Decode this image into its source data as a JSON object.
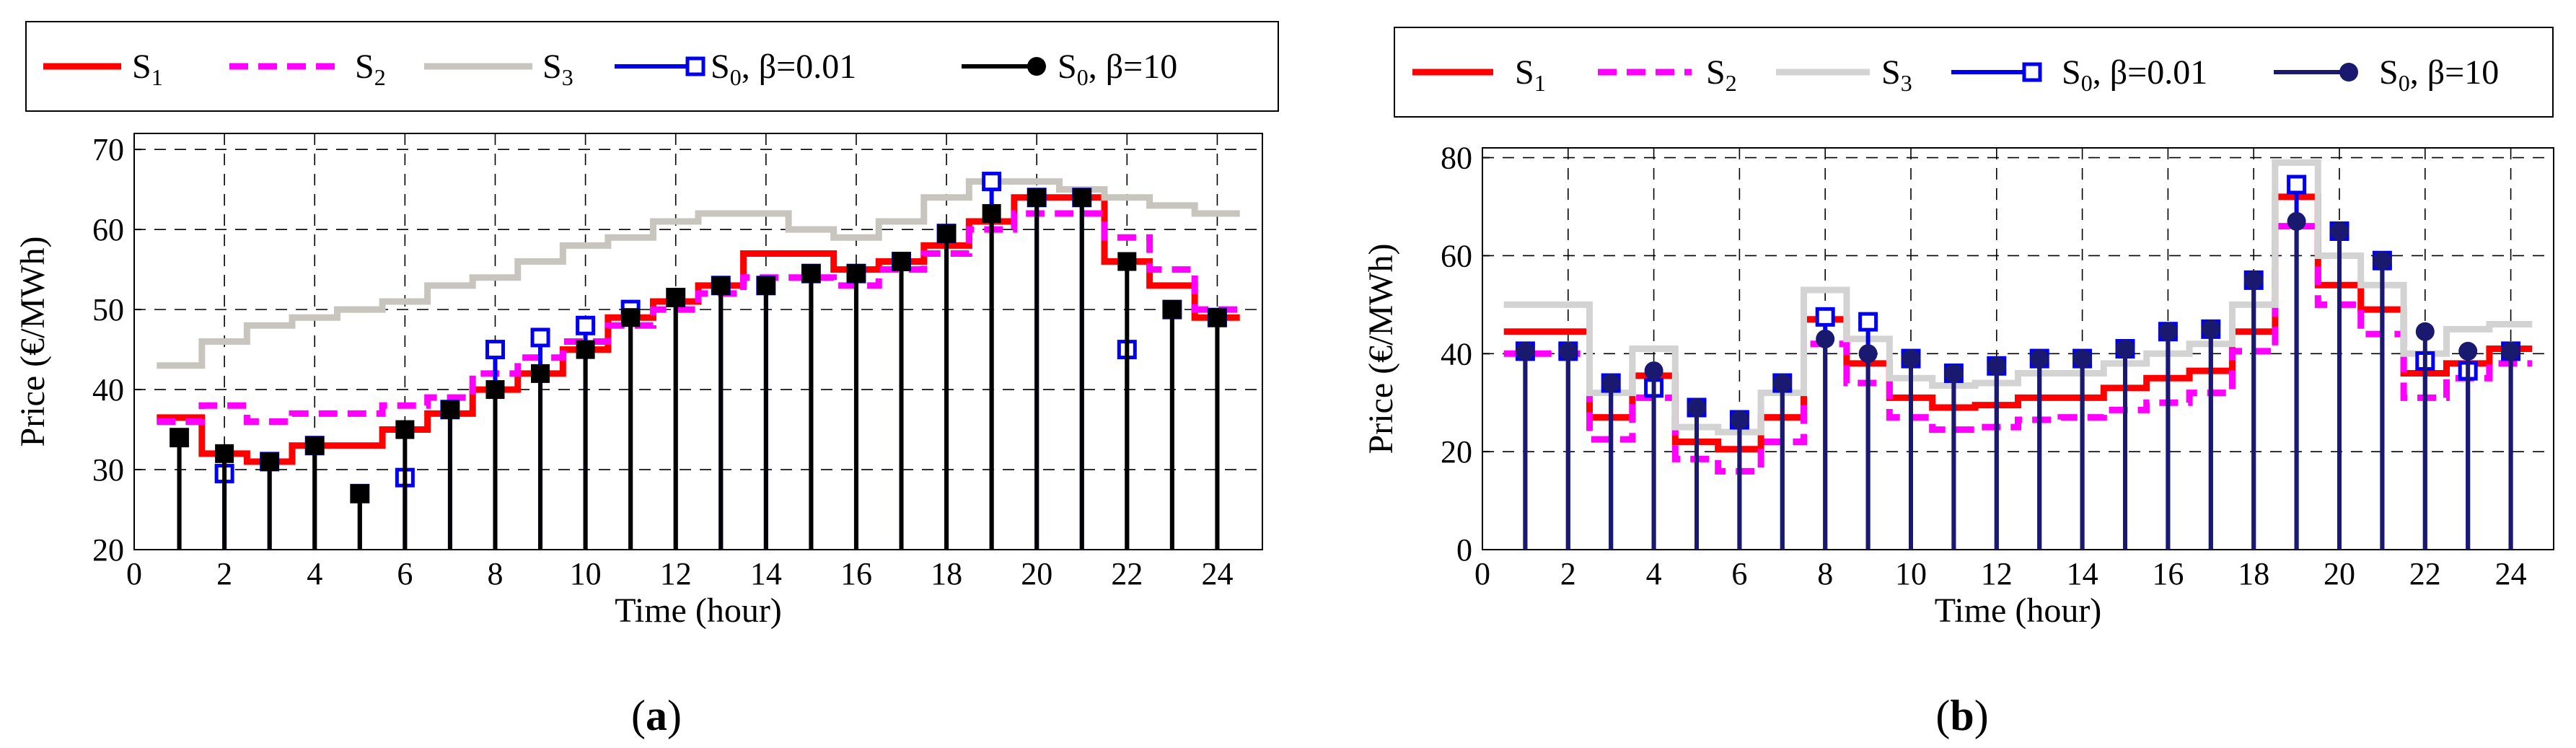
{
  "chart_data": [
    {
      "type": "line",
      "panel_label": "a",
      "xlabel": "Time (hour)",
      "ylabel": "Price (€/MWh)",
      "xlim": [
        0,
        25
      ],
      "ylim": [
        20,
        72
      ],
      "xticks": [
        0,
        2,
        4,
        6,
        8,
        10,
        12,
        14,
        16,
        18,
        20,
        22,
        24
      ],
      "yticks": [
        20,
        30,
        40,
        50,
        60,
        70
      ],
      "grid": true,
      "legend_position": "top",
      "series": [
        {
          "name": "S1",
          "label_main": "S",
          "label_sub": "1",
          "style": "step",
          "color": "#ff0000",
          "x": [
            1,
            2,
            3,
            4,
            5,
            6,
            7,
            8,
            9,
            10,
            11,
            12,
            13,
            14,
            15,
            16,
            17,
            18,
            19,
            20,
            21,
            22,
            23,
            24
          ],
          "values": [
            36.5,
            32,
            31,
            33,
            33,
            35,
            37,
            40,
            42,
            45,
            49,
            51,
            53,
            57,
            57,
            55,
            56,
            58,
            61,
            64,
            64,
            56,
            53,
            49
          ]
        },
        {
          "name": "S2",
          "label_main": "S",
          "label_sub": "2",
          "style": "step-dash",
          "color": "#ff00ff",
          "x": [
            1,
            2,
            3,
            4,
            5,
            6,
            7,
            8,
            9,
            10,
            11,
            12,
            13,
            14,
            15,
            16,
            17,
            18,
            19,
            20,
            21,
            22,
            23,
            24
          ],
          "values": [
            36,
            38,
            36,
            37,
            37,
            38,
            39,
            42,
            44,
            46,
            48,
            50,
            52,
            54,
            54,
            53,
            55,
            57,
            60,
            62,
            62,
            59,
            55,
            50
          ]
        },
        {
          "name": "S3",
          "label_main": "S",
          "label_sub": "3",
          "style": "step",
          "color": "#c8c4be",
          "x": [
            1,
            2,
            3,
            4,
            5,
            6,
            7,
            8,
            9,
            10,
            11,
            12,
            13,
            14,
            15,
            16,
            17,
            18,
            19,
            20,
            21,
            22,
            23,
            24
          ],
          "values": [
            43,
            46,
            48,
            49,
            50,
            51,
            53,
            54,
            56,
            58,
            59,
            61,
            62,
            62,
            60,
            59,
            61,
            64,
            66,
            66,
            65,
            64,
            63,
            62
          ]
        },
        {
          "name": "S0, β=0.01",
          "label_main": "S",
          "label_sub": "0",
          "label_tail": ", β=0.01",
          "style": "stem-open-square",
          "color": "#0000ee",
          "x": [
            1,
            2,
            3,
            4,
            5,
            6,
            7,
            8,
            9,
            10,
            11,
            12,
            13,
            14,
            15,
            16,
            17,
            18,
            19,
            20,
            21,
            22,
            23,
            24
          ],
          "values": [
            34,
            29.5,
            31,
            33,
            27,
            29,
            37.5,
            45,
            46.5,
            48,
            50,
            51.5,
            53,
            53,
            54.5,
            54.5,
            56,
            59.5,
            66,
            64,
            64,
            45,
            50,
            49
          ]
        },
        {
          "name": "S0, β=10",
          "label_main": "S",
          "label_sub": "0",
          "label_tail": ", β=10",
          "style": "stem-filled",
          "color": "#000000",
          "x": [
            1,
            2,
            3,
            4,
            5,
            6,
            7,
            8,
            9,
            10,
            11,
            12,
            13,
            14,
            15,
            16,
            17,
            18,
            19,
            20,
            21,
            22,
            23,
            24
          ],
          "values": [
            34,
            32,
            31,
            33,
            27,
            35,
            37.5,
            40,
            42,
            45,
            49,
            51.5,
            53,
            53,
            54.5,
            54.5,
            56,
            59.5,
            62,
            64,
            64,
            56,
            50,
            49
          ]
        }
      ]
    },
    {
      "type": "line",
      "panel_label": "b",
      "xlabel": "Time (hour)",
      "ylabel": "Price (€/MWh)",
      "xlim": [
        0,
        25
      ],
      "ylim": [
        0,
        82
      ],
      "xticks": [
        0,
        2,
        4,
        6,
        8,
        10,
        12,
        14,
        16,
        18,
        20,
        22,
        24
      ],
      "yticks": [
        0,
        20,
        40,
        60,
        80
      ],
      "grid": true,
      "legend_position": "top",
      "series": [
        {
          "name": "S1",
          "label_main": "S",
          "label_sub": "1",
          "style": "step",
          "color": "#ff0000",
          "x": [
            1,
            2,
            3,
            4,
            5,
            6,
            7,
            8,
            9,
            10,
            11,
            12,
            13,
            14,
            15,
            16,
            17,
            18,
            19,
            20,
            21,
            22,
            23,
            24
          ],
          "values": [
            44.5,
            44.5,
            27,
            35.5,
            22,
            20.5,
            27,
            47,
            38,
            31,
            29,
            29.5,
            31,
            31,
            33,
            35,
            36.5,
            44.5,
            72,
            54,
            49,
            36,
            38,
            41
          ]
        },
        {
          "name": "S2",
          "label_main": "S",
          "label_sub": "2",
          "style": "step-dash",
          "color": "#ff00ff",
          "x": [
            1,
            2,
            3,
            4,
            5,
            6,
            7,
            8,
            9,
            10,
            11,
            12,
            13,
            14,
            15,
            16,
            17,
            18,
            19,
            20,
            21,
            22,
            23,
            24
          ],
          "values": [
            40,
            40,
            22.5,
            31,
            18.5,
            16,
            22,
            42,
            34,
            27,
            24.5,
            25,
            26.5,
            27,
            28.5,
            30,
            32,
            40.5,
            66,
            50,
            44,
            31,
            35,
            38
          ]
        },
        {
          "name": "S3",
          "label_main": "S",
          "label_sub": "3",
          "style": "step",
          "color": "#d3d3d3",
          "x": [
            1,
            2,
            3,
            4,
            5,
            6,
            7,
            8,
            9,
            10,
            11,
            12,
            13,
            14,
            15,
            16,
            17,
            18,
            19,
            20,
            21,
            22,
            23,
            24
          ],
          "values": [
            50,
            50,
            32,
            41,
            25,
            24,
            32,
            53,
            43,
            35,
            33.5,
            34,
            36,
            36,
            38,
            40,
            42,
            50,
            79,
            60,
            54,
            40,
            45,
            46
          ]
        },
        {
          "name": "S0, β=0.01",
          "label_main": "S",
          "label_sub": "0",
          "label_tail": ", β=0.01",
          "style": "stem-open-square",
          "color": "#0000ee",
          "x": [
            1,
            2,
            3,
            4,
            5,
            6,
            7,
            8,
            9,
            10,
            11,
            12,
            13,
            14,
            15,
            16,
            17,
            18,
            19,
            20,
            21,
            22,
            23,
            24
          ],
          "values": [
            40.5,
            40.5,
            34,
            33,
            29,
            26.5,
            34,
            47.5,
            46.5,
            39,
            36,
            37.5,
            39,
            39,
            41,
            44.5,
            45,
            55,
            74.5,
            65,
            59,
            38.5,
            36.5,
            40.5
          ]
        },
        {
          "name": "S0, β=10",
          "label_main": "S",
          "label_sub": "0",
          "label_tail": ", β=10",
          "style": "stem-filled",
          "color": "#191970",
          "x": [
            1,
            2,
            3,
            4,
            5,
            6,
            7,
            8,
            9,
            10,
            11,
            12,
            13,
            14,
            15,
            16,
            17,
            18,
            19,
            20,
            21,
            22,
            23,
            24
          ],
          "values": [
            40.5,
            40.5,
            34,
            36.5,
            29,
            26.5,
            34,
            43,
            40,
            39,
            36,
            37.5,
            39,
            39,
            41,
            44.5,
            45,
            55,
            67,
            65,
            59,
            44.5,
            40.5,
            40.5
          ]
        }
      ]
    }
  ]
}
